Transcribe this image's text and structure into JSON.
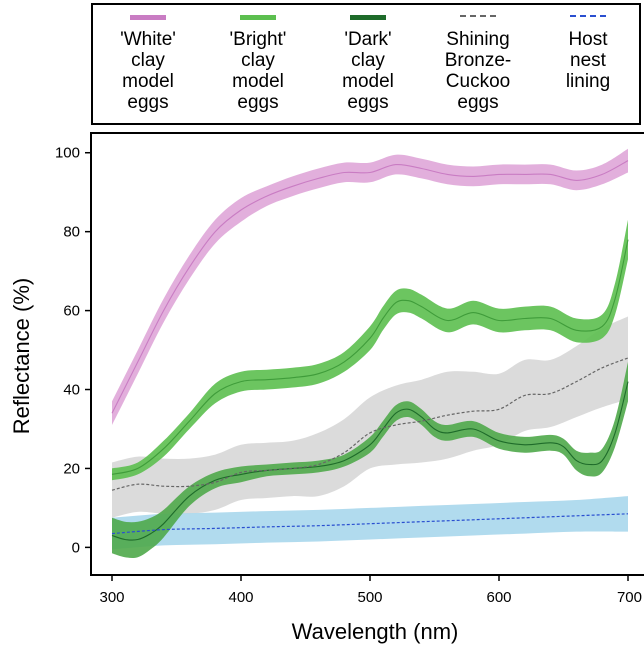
{
  "legend": {
    "items": [
      {
        "label": "'White'\nclay\nmodel\neggs",
        "color": "#c97cc3",
        "style": "solid"
      },
      {
        "label": "'Bright'\nclay\nmodel\neggs",
        "color": "#5cbf4f",
        "style": "solid"
      },
      {
        "label": "'Dark'\nclay\nmodel\neggs",
        "color": "#1e6b2a",
        "style": "solid"
      },
      {
        "label": "Shining\nBronze-\nCuckoo\neggs",
        "color": "#666666",
        "style": "dashed"
      },
      {
        "label": "Host\nnest\nlining",
        "color": "#2a4fd0",
        "style": "dashed"
      }
    ]
  },
  "chart_data": {
    "type": "line",
    "xlabel": "Wavelength (nm)",
    "ylabel": "Reflectance (%)",
    "xlim": [
      300,
      700
    ],
    "ylim": [
      -7,
      105
    ],
    "xticks": [
      300,
      400,
      500,
      600,
      700
    ],
    "yticks": [
      0,
      20,
      40,
      60,
      80,
      100
    ],
    "grid": false,
    "legend_position": "top",
    "series": [
      {
        "name": "'White' clay model eggs",
        "color": "#c97cc3",
        "band_color": "#dfa6d8",
        "line_style": "solid",
        "x": [
          300,
          320,
          340,
          360,
          380,
          400,
          420,
          440,
          460,
          480,
          500,
          520,
          540,
          560,
          580,
          600,
          620,
          640,
          660,
          680,
          700
        ],
        "y": [
          34,
          47,
          60,
          71,
          80,
          85.5,
          89,
          91.5,
          93.5,
          95,
          95,
          97,
          96,
          94.5,
          94,
          94.5,
          94.5,
          94.5,
          93,
          94.5,
          98
        ],
        "band": [
          3,
          3,
          3,
          3,
          3,
          3,
          2.5,
          2.5,
          2.5,
          2.5,
          2.5,
          2.5,
          2.5,
          2.5,
          2.5,
          2.5,
          2.5,
          2.5,
          2.5,
          2.5,
          3
        ]
      },
      {
        "name": "'Bright' clay model eggs",
        "color": "#3f9c3a",
        "band_color": "#5cbf4f",
        "line_style": "solid",
        "x": [
          300,
          320,
          340,
          360,
          380,
          400,
          420,
          440,
          460,
          480,
          500,
          510,
          520,
          530,
          540,
          560,
          580,
          600,
          620,
          640,
          660,
          680,
          690,
          700
        ],
        "y": [
          18.5,
          20,
          25,
          32,
          39,
          42,
          42.5,
          43,
          44,
          47,
          53,
          58,
          62,
          62.5,
          61,
          57.5,
          59.5,
          57.5,
          58,
          58,
          55,
          56,
          63,
          78
        ],
        "band": [
          1.5,
          1.5,
          2,
          2,
          2.5,
          2.5,
          2.5,
          2.5,
          2.5,
          2.5,
          3,
          3,
          3,
          3,
          3,
          3,
          3,
          3,
          3,
          3,
          3,
          3,
          4,
          5
        ]
      },
      {
        "name": "'Dark' clay model eggs",
        "color": "#1e6b2a",
        "band_color": "#4fa84a",
        "line_style": "solid",
        "x": [
          300,
          310,
          320,
          330,
          340,
          360,
          380,
          400,
          420,
          440,
          460,
          480,
          500,
          510,
          520,
          530,
          540,
          550,
          560,
          580,
          600,
          620,
          640,
          650,
          660,
          670,
          680,
          690,
          700
        ],
        "y": [
          3,
          2,
          2,
          3.5,
          6,
          13,
          17,
          18.5,
          19.5,
          20,
          20.5,
          22,
          26,
          30,
          34,
          35,
          33,
          30,
          29,
          30,
          27,
          26,
          26.5,
          25.5,
          22,
          21,
          22,
          29,
          42
        ],
        "band": [
          4.5,
          4.5,
          4.5,
          4,
          3.5,
          2.5,
          2,
          2,
          1.5,
          1.5,
          1.5,
          1.5,
          2,
          2,
          2,
          2,
          2,
          2,
          2,
          2,
          2,
          2,
          2,
          2,
          2.5,
          3,
          3,
          3.5,
          5
        ]
      },
      {
        "name": "Shining Bronze-Cuckoo eggs",
        "color": "#666666",
        "band_color": "#cfcfcf",
        "line_style": "dashed",
        "x": [
          300,
          320,
          340,
          360,
          380,
          400,
          420,
          440,
          460,
          480,
          500,
          520,
          540,
          560,
          580,
          600,
          620,
          640,
          660,
          680,
          700
        ],
        "y": [
          14.5,
          16,
          15.5,
          15.5,
          16.5,
          19,
          19.5,
          20,
          21,
          24,
          29,
          31,
          32,
          33.5,
          34.5,
          35,
          38.5,
          39,
          42,
          45.5,
          48
        ],
        "band": [
          7,
          7,
          7,
          7,
          7,
          7,
          7,
          7,
          8,
          8.5,
          9,
          10,
          10.5,
          11,
          10,
          9,
          9,
          8.5,
          9,
          10,
          10.5
        ]
      },
      {
        "name": "Host nest lining",
        "color": "#2a4fd0",
        "band_color": "#a9d7ec",
        "line_style": "dashed",
        "x": [
          300,
          340,
          380,
          420,
          460,
          500,
          540,
          580,
          620,
          660,
          700
        ],
        "y": [
          3.5,
          4.5,
          4.8,
          5.2,
          5.5,
          6,
          6.5,
          7,
          7.5,
          8,
          8.5
        ],
        "band": [
          4,
          4,
          4,
          4,
          4,
          4,
          4,
          4,
          4,
          4,
          4.5
        ]
      }
    ]
  }
}
